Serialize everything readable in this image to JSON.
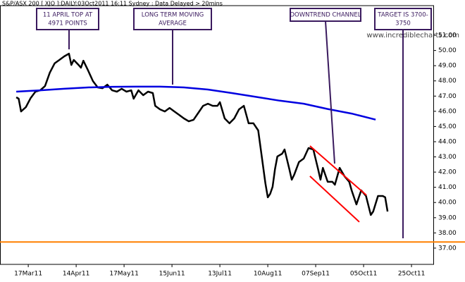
{
  "chart_data": {
    "type": "line",
    "title": "S&P/ASX 200 [ XJO ]:DAILY:03Oct2011 16:11 Sydney : Data Delayed > 20mins",
    "watermark": "www.incrediblecharts.com",
    "xlim": [
      -11.8,
      169.1
    ],
    "ylim": [
      35.93,
      52.95
    ],
    "xticks": [
      {
        "value": 0,
        "label": "17Mar11"
      },
      {
        "value": 20,
        "label": "14Apr11"
      },
      {
        "value": 40,
        "label": "17May11"
      },
      {
        "value": 60,
        "label": "15Jun11"
      },
      {
        "value": 80,
        "label": "13Jul11"
      },
      {
        "value": 100,
        "label": "10Aug11"
      },
      {
        "value": 120,
        "label": "07Sep11"
      },
      {
        "value": 140,
        "label": "05Oct11"
      },
      {
        "value": 160,
        "label": "25Oct11"
      }
    ],
    "yticks": [
      {
        "value": 37,
        "label": "37.00"
      },
      {
        "value": 38,
        "label": "38.00"
      },
      {
        "value": 39,
        "label": "39.00"
      },
      {
        "value": 40,
        "label": "40.00"
      },
      {
        "value": 41,
        "label": "41.00"
      },
      {
        "value": 42,
        "label": "42.00"
      },
      {
        "value": 43,
        "label": "43.00"
      },
      {
        "value": 44,
        "label": "44.00"
      },
      {
        "value": 45,
        "label": "45.00"
      },
      {
        "value": 46,
        "label": "46.00"
      },
      {
        "value": 47,
        "label": "47.00"
      },
      {
        "value": 48,
        "label": "48.00"
      },
      {
        "value": 49,
        "label": "49.00"
      },
      {
        "value": 50,
        "label": "50.00"
      },
      {
        "value": 51,
        "label": "51.00"
      }
    ],
    "series": [
      {
        "color": "#000000",
        "width": 2.5,
        "x": [
          -5,
          -4,
          -3,
          -1,
          1,
          3,
          5,
          7,
          9,
          11,
          13,
          15,
          17,
          18,
          19,
          21,
          22,
          23,
          25,
          27,
          29,
          31,
          33,
          35,
          37,
          39,
          41,
          43,
          44,
          46,
          48,
          50,
          52,
          53,
          55,
          57,
          59,
          61,
          63,
          65,
          67,
          69,
          71,
          73,
          75,
          77,
          79,
          80,
          82,
          84,
          86,
          88,
          90,
          92,
          94,
          96,
          97,
          98,
          99,
          100,
          101,
          102,
          103,
          104,
          106,
          107,
          109,
          110,
          111,
          113,
          115,
          117,
          119,
          121,
          122,
          123,
          125,
          127,
          128,
          130,
          132,
          134,
          135,
          137,
          138,
          139,
          141,
          143,
          144,
          146,
          148,
          149,
          150
        ],
        "values": [
          46.92,
          46.83,
          45.99,
          46.27,
          46.87,
          47.29,
          47.38,
          47.66,
          48.54,
          49.15,
          49.38,
          49.61,
          49.79,
          49.05,
          49.38,
          49.05,
          48.87,
          49.33,
          48.68,
          47.99,
          47.57,
          47.52,
          47.75,
          47.38,
          47.29,
          47.48,
          47.29,
          47.38,
          46.83,
          47.38,
          47.06,
          47.29,
          47.2,
          46.36,
          46.13,
          45.99,
          46.22,
          45.99,
          45.76,
          45.53,
          45.34,
          45.44,
          45.9,
          46.36,
          46.5,
          46.36,
          46.36,
          46.6,
          45.53,
          45.21,
          45.53,
          46.13,
          46.36,
          45.21,
          45.21,
          44.74,
          43.58,
          42.42,
          41.26,
          40.34,
          40.57,
          41.03,
          42.19,
          43.03,
          43.21,
          43.49,
          42.19,
          41.5,
          41.82,
          42.66,
          42.89,
          43.58,
          43.49,
          42.19,
          41.5,
          42.28,
          41.36,
          41.36,
          41.17,
          42.28,
          41.73,
          41.36,
          40.8,
          39.87,
          40.34,
          40.8,
          40.43,
          39.18,
          39.41,
          40.43,
          40.43,
          40.34,
          39.41
        ]
      },
      {
        "color": "#0000e0",
        "width": 2.5,
        "x": [
          -5,
          5,
          15,
          25,
          35,
          45,
          55,
          65,
          75,
          85,
          95,
          105,
          115,
          125,
          135,
          145
        ],
        "values": [
          47.29,
          47.38,
          47.48,
          47.57,
          47.61,
          47.62,
          47.62,
          47.57,
          47.43,
          47.2,
          46.95,
          46.7,
          46.5,
          46.15,
          45.85,
          45.45
        ]
      },
      {
        "color": "#ff0000",
        "width": 2,
        "x": [
          117.6,
          141.2
        ],
        "values": [
          43.72,
          40.48
        ]
      },
      {
        "color": "#ff0000",
        "width": 2,
        "x": [
          117.6,
          138.2
        ],
        "values": [
          41.73,
          38.72
        ]
      }
    ],
    "hlines": [
      {
        "value": 37.4,
        "color": "#ff8000"
      }
    ],
    "annotations": [
      {
        "text": [
          "11 APRIL TOP AT",
          "4971 POINTS"
        ]
      },
      {
        "text": [
          "LONG TERM MOVING",
          "AVERAGE"
        ]
      },
      {
        "text": [
          "DOWNTREND CHANNEL"
        ]
      },
      {
        "text": [
          "TARGET IS 3700-",
          "3750"
        ]
      }
    ]
  }
}
